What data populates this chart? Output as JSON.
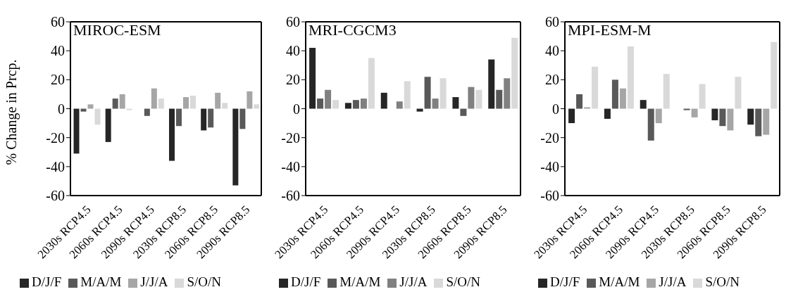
{
  "chart_data": [
    {
      "type": "bar",
      "title": "MIROC-ESM",
      "ylabel": "% Change in Prcp.",
      "categories": [
        "2030s RCP4.5",
        "2060s RCP4.5",
        "2090s RCP4.5",
        "2030s RCP8.5",
        "2060s RCP8.5",
        "2090s RCP8.5"
      ],
      "series": [
        {
          "name": "D/J/F",
          "color": "#262626",
          "values": [
            -31,
            -23,
            0,
            -36,
            -15,
            -53
          ]
        },
        {
          "name": "M/A/M",
          "color": "#595959",
          "values": [
            -2,
            7,
            -5,
            -12,
            -13,
            -14
          ]
        },
        {
          "name": "J/J/A",
          "color": "#a6a6a6",
          "values": [
            3,
            10,
            14,
            8,
            11,
            12
          ]
        },
        {
          "name": "S/O/N",
          "color": "#d9d9d9",
          "values": [
            -11,
            -1,
            7,
            9,
            4,
            3
          ]
        }
      ],
      "ylim": [
        -60,
        60
      ],
      "yticks": [
        -60,
        -40,
        -20,
        0,
        20,
        40,
        60
      ],
      "grid": false,
      "legend": "bottom"
    },
    {
      "type": "bar",
      "title": "MRI-CGCM3",
      "categories": [
        "2030s RCP4.5",
        "2060s RCP4.5",
        "2090s RCP4.5",
        "2030s RCP8.5",
        "2060s RCP8.5",
        "2090s RCP8.5"
      ],
      "series": [
        {
          "name": "D/J/F",
          "color": "#262626",
          "values": [
            42,
            4,
            11,
            -2,
            8,
            34
          ]
        },
        {
          "name": "M/A/M",
          "color": "#595959",
          "values": [
            7,
            6,
            0,
            22,
            -5,
            13
          ]
        },
        {
          "name": "J/J/A",
          "color": "#808080",
          "values": [
            13,
            7,
            5,
            7,
            15,
            21
          ]
        },
        {
          "name": "S/O/N",
          "color": "#d9d9d9",
          "values": [
            6,
            35,
            19,
            21,
            13,
            49
          ]
        }
      ],
      "ylim": [
        -60,
        60
      ],
      "yticks": [
        -60,
        -40,
        -20,
        0,
        20,
        40,
        60
      ],
      "grid": false,
      "legend": "bottom"
    },
    {
      "type": "bar",
      "title": "MPI-ESM-M",
      "categories": [
        "2030s RCP4.5",
        "2060s RCP4.5",
        "2090s RCP4.5",
        "2030s RCP8.5",
        "2060s RCP8.5",
        "2090s RCP8.5"
      ],
      "series": [
        {
          "name": "D/J/F",
          "color": "#262626",
          "values": [
            -10,
            -7,
            6,
            0,
            -8,
            -11
          ]
        },
        {
          "name": "M/A/M",
          "color": "#595959",
          "values": [
            10,
            20,
            -22,
            -1,
            -12,
            -19
          ]
        },
        {
          "name": "J/J/A",
          "color": "#a6a6a6",
          "values": [
            1,
            14,
            -10,
            -6,
            -15,
            -18
          ]
        },
        {
          "name": "S/O/N",
          "color": "#d9d9d9",
          "values": [
            29,
            43,
            24,
            17,
            22,
            46
          ]
        }
      ],
      "ylim": [
        -60,
        60
      ],
      "yticks": [
        -60,
        -40,
        -20,
        0,
        20,
        40,
        60
      ],
      "grid": false,
      "legend": "bottom"
    }
  ]
}
